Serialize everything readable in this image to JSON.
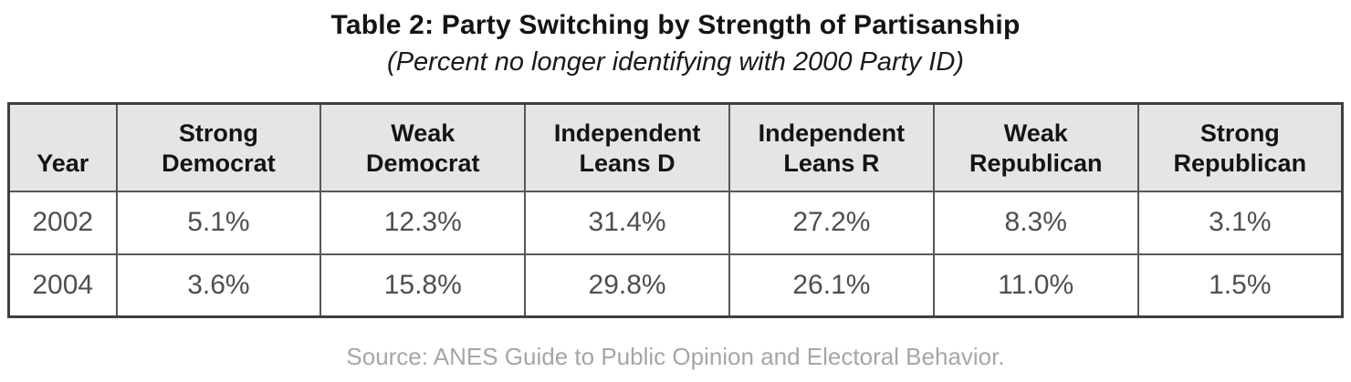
{
  "title": "Table 2: Party Switching by Strength of Partisanship",
  "subtitle": "(Percent no longer identifying with 2000 Party ID)",
  "source": "Source: ANES Guide to Public Opinion and Electoral Behavior.",
  "colors": {
    "header_bg": "#e5e5e5",
    "border": "#575757",
    "outer_border": "#3f3f3f",
    "heading_text": "#141414",
    "data_text": "#4f4f4f",
    "source_text": "#a6a6a6"
  },
  "table": {
    "columns": [
      {
        "label": "Year"
      },
      {
        "label": "Strong\nDemocrat"
      },
      {
        "label": "Weak\nDemocrat"
      },
      {
        "label": "Independent\nLeans D"
      },
      {
        "label": "Independent\nLeans R"
      },
      {
        "label": "Weak\nRepublican"
      },
      {
        "label": "Strong\nRepublican"
      }
    ],
    "rows": [
      {
        "year": "2002",
        "values": [
          "5.1%",
          "12.3%",
          "31.4%",
          "27.2%",
          "8.3%",
          "3.1%"
        ]
      },
      {
        "year": "2004",
        "values": [
          "3.6%",
          "15.8%",
          "29.8%",
          "26.1%",
          "11.0%",
          "1.5%"
        ]
      }
    ]
  },
  "chart_data": {
    "type": "table",
    "title": "Table 2: Party Switching by Strength of Partisanship",
    "subtitle": "(Percent no longer identifying with 2000 Party ID)",
    "columns": [
      "Year",
      "Strong Democrat",
      "Weak Democrat",
      "Independent Leans D",
      "Independent Leans R",
      "Weak Republican",
      "Strong Republican"
    ],
    "rows": [
      [
        "2002",
        "5.1%",
        "12.3%",
        "31.4%",
        "27.2%",
        "8.3%",
        "3.1%"
      ],
      [
        "2004",
        "3.6%",
        "15.8%",
        "29.8%",
        "26.1%",
        "11.0%",
        "1.5%"
      ]
    ],
    "units": "percent",
    "source": "Source: ANES Guide to Public Opinion and Electoral Behavior."
  }
}
